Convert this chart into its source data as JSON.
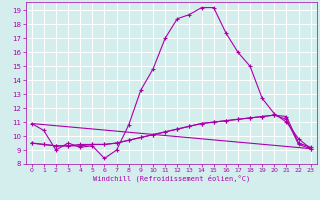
{
  "xlabel": "Windchill (Refroidissement éolien,°C)",
  "bg_color": "#d4eeee",
  "grid_color": "#ffffff",
  "line_color": "#aa00aa",
  "xlim": [
    -0.5,
    23.5
  ],
  "ylim": [
    8,
    19.6
  ],
  "xticks": [
    0,
    1,
    2,
    3,
    4,
    5,
    6,
    7,
    8,
    9,
    10,
    11,
    12,
    13,
    14,
    15,
    16,
    17,
    18,
    19,
    20,
    21,
    22,
    23
  ],
  "yticks": [
    8,
    9,
    10,
    11,
    12,
    13,
    14,
    15,
    16,
    17,
    18,
    19
  ],
  "lines": [
    {
      "x": [
        0,
        1,
        2,
        3,
        4,
        5,
        6,
        7,
        8,
        9,
        10,
        11,
        12,
        13,
        14,
        15,
        16,
        17,
        18,
        19,
        20,
        21,
        22,
        23
      ],
      "y": [
        10.9,
        10.4,
        9.0,
        9.5,
        9.2,
        9.3,
        8.4,
        9.0,
        10.8,
        13.3,
        14.8,
        17.0,
        18.4,
        18.7,
        19.2,
        19.2,
        17.4,
        16.0,
        15.0,
        12.7,
        11.6,
        11.0,
        9.8,
        9.1
      ]
    },
    {
      "x": [
        0,
        1,
        2,
        3,
        4,
        5,
        6,
        7,
        8,
        9,
        10,
        11,
        12,
        13,
        14,
        15,
        16,
        17,
        18,
        19,
        20,
        21,
        22,
        23
      ],
      "y": [
        9.5,
        9.4,
        9.3,
        9.3,
        9.4,
        9.4,
        9.4,
        9.5,
        9.7,
        9.9,
        10.1,
        10.3,
        10.5,
        10.7,
        10.9,
        11.0,
        11.1,
        11.2,
        11.3,
        11.4,
        11.5,
        11.4,
        9.5,
        9.2
      ]
    },
    {
      "x": [
        0,
        1,
        2,
        3,
        4,
        5,
        6,
        7,
        8,
        9,
        10,
        11,
        12,
        13,
        14,
        15,
        16,
        17,
        18,
        19,
        20,
        21,
        22,
        23
      ],
      "y": [
        9.5,
        9.4,
        9.3,
        9.3,
        9.3,
        9.4,
        9.4,
        9.5,
        9.7,
        9.9,
        10.1,
        10.3,
        10.5,
        10.7,
        10.9,
        11.0,
        11.1,
        11.2,
        11.3,
        11.4,
        11.5,
        11.2,
        9.4,
        9.1
      ]
    },
    {
      "x": [
        0,
        23
      ],
      "y": [
        10.9,
        9.1
      ]
    }
  ]
}
